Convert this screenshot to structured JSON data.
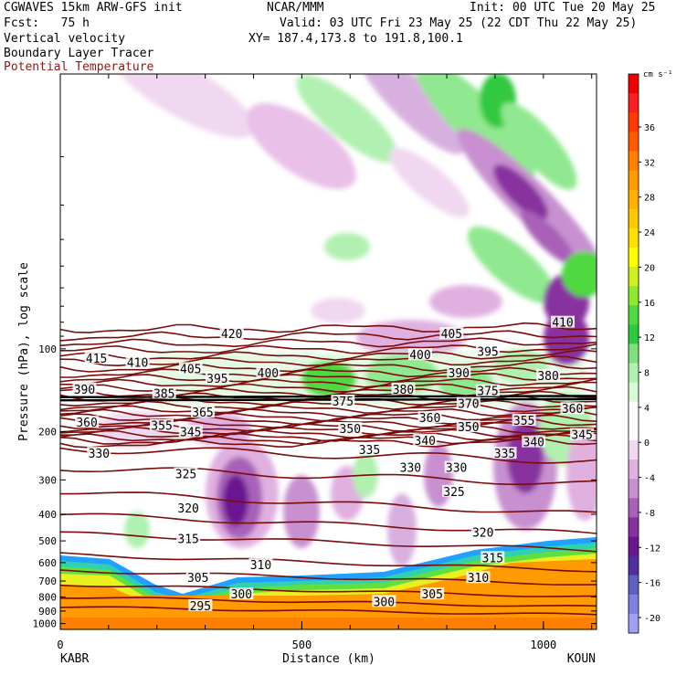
{
  "header": {
    "model": "CGWAVES 15km ARW-GFS init",
    "center": "NCAR/MMM",
    "init": "Init: 00 UTC Tue 20 May 25",
    "fcst": "Fcst:   75 h",
    "valid": "Valid: 03 UTC Fri 23 May 25 (22 CDT Thu 22 May 25)",
    "xy": "XY= 187.4,173.8 to 191.8,100.1",
    "field1": "Vertical velocity",
    "field2": "Boundary Layer Tracer",
    "field3": "Potential Temperature"
  },
  "chart_data": {
    "type": "heatmap",
    "xlabel": "Distance (km)",
    "ylabel": "Pressure (hPa), log scale",
    "xlim": [
      0,
      1110
    ],
    "ylim": [
      1050,
      10
    ],
    "x_ticks": [
      0,
      500,
      1000
    ],
    "y_ticks": [
      100,
      200,
      300,
      400,
      500,
      600,
      700,
      800,
      900,
      1000
    ],
    "x_start_label": "KABR",
    "x_end_label": "KOUN",
    "colorbar": {
      "unit": "cm s⁻¹",
      "labels": [
        36,
        32,
        28,
        24,
        20,
        16,
        12,
        8,
        4,
        0,
        -4,
        -8,
        -12,
        -16,
        -20
      ],
      "colors": [
        "#ee0000",
        "#f82020",
        "#ff3a00",
        "#ff5a00",
        "#ff8000",
        "#ff9a00",
        "#ffb000",
        "#ffc800",
        "#ffe000",
        "#ffff00",
        "#d0f020",
        "#90e830",
        "#50d840",
        "#30c840",
        "#80e080",
        "#b0f0b0",
        "#d8f8d8",
        "#ffffff",
        "#ffffff",
        "#f0d8f0",
        "#e0b0e0",
        "#c890d0",
        "#a860b8",
        "#8830a0",
        "#6a1890",
        "#5030a0",
        "#6060c0",
        "#8080e0",
        "#a0a0f0"
      ]
    },
    "theta_labels": [
      {
        "v": "420",
        "x": 355,
        "p": 88
      },
      {
        "v": "415",
        "x": 75,
        "p": 108
      },
      {
        "v": "410",
        "x": 160,
        "p": 112
      },
      {
        "v": "405",
        "x": 270,
        "p": 118
      },
      {
        "v": "400",
        "x": 430,
        "p": 122
      },
      {
        "v": "405",
        "x": 810,
        "p": 88
      },
      {
        "v": "400",
        "x": 745,
        "p": 105
      },
      {
        "v": "395",
        "x": 325,
        "p": 128
      },
      {
        "v": "395",
        "x": 885,
        "p": 102
      },
      {
        "v": "390",
        "x": 50,
        "p": 140
      },
      {
        "v": "390",
        "x": 825,
        "p": 122
      },
      {
        "v": "410",
        "x": 1040,
        "p": 80
      },
      {
        "v": "385",
        "x": 215,
        "p": 145
      },
      {
        "v": "380",
        "x": 710,
        "p": 140
      },
      {
        "v": "380",
        "x": 1010,
        "p": 125
      },
      {
        "v": "375",
        "x": 585,
        "p": 155
      },
      {
        "v": "375",
        "x": 885,
        "p": 142
      },
      {
        "v": "370",
        "x": 845,
        "p": 158
      },
      {
        "v": "365",
        "x": 295,
        "p": 170
      },
      {
        "v": "360",
        "x": 55,
        "p": 185
      },
      {
        "v": "360",
        "x": 765,
        "p": 178
      },
      {
        "v": "360",
        "x": 1060,
        "p": 165
      },
      {
        "v": "355",
        "x": 210,
        "p": 190
      },
      {
        "v": "355",
        "x": 960,
        "p": 182
      },
      {
        "v": "350",
        "x": 600,
        "p": 195
      },
      {
        "v": "350",
        "x": 845,
        "p": 192
      },
      {
        "v": "345",
        "x": 270,
        "p": 200
      },
      {
        "v": "345",
        "x": 1080,
        "p": 205
      },
      {
        "v": "340",
        "x": 755,
        "p": 215
      },
      {
        "v": "340",
        "x": 980,
        "p": 218
      },
      {
        "v": "335",
        "x": 640,
        "p": 232
      },
      {
        "v": "335",
        "x": 920,
        "p": 240
      },
      {
        "v": "330",
        "x": 80,
        "p": 240
      },
      {
        "v": "330",
        "x": 725,
        "p": 270
      },
      {
        "v": "330",
        "x": 820,
        "p": 270
      },
      {
        "v": "325",
        "x": 260,
        "p": 285
      },
      {
        "v": "325",
        "x": 815,
        "p": 330
      },
      {
        "v": "320",
        "x": 265,
        "p": 380
      },
      {
        "v": "320",
        "x": 875,
        "p": 465
      },
      {
        "v": "315",
        "x": 265,
        "p": 490
      },
      {
        "v": "315",
        "x": 895,
        "p": 575
      },
      {
        "v": "310",
        "x": 415,
        "p": 610
      },
      {
        "v": "310",
        "x": 865,
        "p": 680
      },
      {
        "v": "305",
        "x": 285,
        "p": 680
      },
      {
        "v": "305",
        "x": 770,
        "p": 780
      },
      {
        "v": "300",
        "x": 375,
        "p": 780
      },
      {
        "v": "300",
        "x": 670,
        "p": 830
      },
      {
        "v": "295",
        "x": 290,
        "p": 860
      }
    ]
  }
}
